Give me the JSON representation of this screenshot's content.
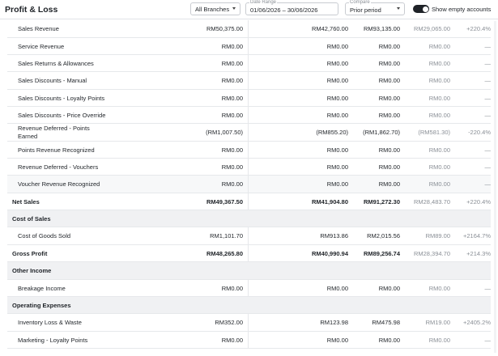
{
  "header": {
    "title": "Profit & Loss",
    "branch": {
      "value": "All Branches"
    },
    "date_range": {
      "label": "Date Range",
      "value": "01/06/2026 – 30/06/2026"
    },
    "compare": {
      "label": "Compare",
      "value": "Prior period"
    },
    "show_empty": {
      "label": "Show empty accounts",
      "enabled": true
    }
  },
  "rows": [
    {
      "label": "Sales Revenue",
      "cur": "RM50,375.00",
      "prior": "RM42,760.00",
      "total": "RM93,135.00",
      "cmp": "RM29,065.00",
      "pct": "+220.4%"
    },
    {
      "label": "Service Revenue",
      "cur": "RM0.00",
      "prior": "RM0.00",
      "total": "RM0.00",
      "cmp": "RM0.00",
      "pct": "—"
    },
    {
      "label": "Sales Returns & Allowances",
      "cur": "RM0.00",
      "prior": "RM0.00",
      "total": "RM0.00",
      "cmp": "RM0.00",
      "pct": "—"
    },
    {
      "label": "Sales Discounts - Manual",
      "cur": "RM0.00",
      "prior": "RM0.00",
      "total": "RM0.00",
      "cmp": "RM0.00",
      "pct": "—"
    },
    {
      "label": "Sales Discounts - Loyalty Points",
      "cur": "RM0.00",
      "prior": "RM0.00",
      "total": "RM0.00",
      "cmp": "RM0.00",
      "pct": "—"
    },
    {
      "label": "Sales Discounts - Price Override",
      "cur": "RM0.00",
      "prior": "RM0.00",
      "total": "RM0.00",
      "cmp": "RM0.00",
      "pct": "—"
    },
    {
      "label": "Revenue Deferred - Points Earned",
      "cur": "(RM1,007.50)",
      "prior": "(RM855.20)",
      "total": "(RM1,862.70)",
      "cmp": "(RM581.30)",
      "pct": "-220.4%"
    },
    {
      "label": "Points Revenue Recognized",
      "cur": "RM0.00",
      "prior": "RM0.00",
      "total": "RM0.00",
      "cmp": "RM0.00",
      "pct": "—"
    },
    {
      "label": "Revenue Deferred - Vouchers",
      "cur": "RM0.00",
      "prior": "RM0.00",
      "total": "RM0.00",
      "cmp": "RM0.00",
      "pct": "—"
    },
    {
      "label": "Voucher Revenue Recognized",
      "cur": "RM0.00",
      "prior": "RM0.00",
      "total": "RM0.00",
      "cmp": "RM0.00",
      "pct": "—"
    },
    {
      "label": "Net Sales",
      "cur": "RM49,367.50",
      "prior": "RM41,904.80",
      "total": "RM91,272.30",
      "cmp": "RM28,483.70",
      "pct": "+220.4%"
    },
    {
      "label": "Cost of Sales"
    },
    {
      "label": "Cost of Goods Sold",
      "cur": "RM1,101.70",
      "prior": "RM913.86",
      "total": "RM2,015.56",
      "cmp": "RM89.00",
      "pct": "+2164.7%"
    },
    {
      "label": "Gross Profit",
      "cur": "RM48,265.80",
      "prior": "RM40,990.94",
      "total": "RM89,256.74",
      "cmp": "RM28,394.70",
      "pct": "+214.3%"
    },
    {
      "label": "Other Income"
    },
    {
      "label": "Breakage Income",
      "cur": "RM0.00",
      "prior": "RM0.00",
      "total": "RM0.00",
      "cmp": "RM0.00",
      "pct": "—"
    },
    {
      "label": "Operating Expenses"
    },
    {
      "label": "Inventory Loss & Waste",
      "cur": "RM352.00",
      "prior": "RM123.98",
      "total": "RM475.98",
      "cmp": "RM19.00",
      "pct": "+2405.2%"
    },
    {
      "label": "Marketing - Loyalty Points",
      "cur": "RM0.00",
      "prior": "RM0.00",
      "total": "RM0.00",
      "cmp": "RM0.00",
      "pct": "—"
    }
  ]
}
